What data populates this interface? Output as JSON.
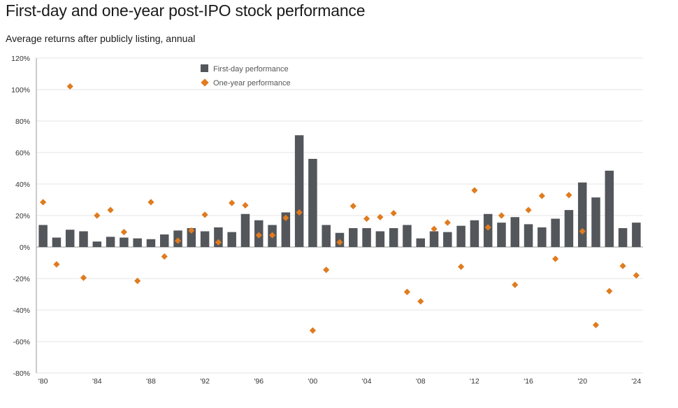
{
  "chart_data": {
    "type": "bar",
    "title": "First-day and one-year post-IPO stock performance",
    "subtitle": "Average returns after publicly listing, annual",
    "xlabel": "",
    "ylabel": "",
    "ylim": [
      -0.8,
      1.2
    ],
    "y_ticks": [
      1.2,
      1.0,
      0.8,
      0.6,
      0.4,
      0.2,
      0.0,
      -0.2,
      -0.4,
      -0.6,
      -0.8
    ],
    "y_tick_labels": [
      "120%",
      "100%",
      "80%",
      "60%",
      "40%",
      "20%",
      "0%",
      "-20%",
      "-40%",
      "-60%",
      "-80%"
    ],
    "x_tick_labels": [
      {
        "year": 1980,
        "label": "'80"
      },
      {
        "year": 1984,
        "label": "'84"
      },
      {
        "year": 1988,
        "label": "'88"
      },
      {
        "year": 1992,
        "label": "'92"
      },
      {
        "year": 1996,
        "label": "'96"
      },
      {
        "year": 2000,
        "label": "'00"
      },
      {
        "year": 2004,
        "label": "'04"
      },
      {
        "year": 2008,
        "label": "'08"
      },
      {
        "year": 2012,
        "label": "'12"
      },
      {
        "year": 2016,
        "label": "'16"
      },
      {
        "year": 2020,
        "label": "'20"
      },
      {
        "year": 2024,
        "label": "'24"
      }
    ],
    "grid": true,
    "legend_position": "top-left",
    "years": [
      1980,
      1981,
      1982,
      1983,
      1984,
      1985,
      1986,
      1987,
      1988,
      1989,
      1990,
      1991,
      1992,
      1993,
      1994,
      1995,
      1996,
      1997,
      1998,
      1999,
      2000,
      2001,
      2002,
      2003,
      2004,
      2005,
      2006,
      2007,
      2008,
      2009,
      2010,
      2011,
      2012,
      2013,
      2014,
      2015,
      2016,
      2017,
      2018,
      2019,
      2020,
      2021,
      2022,
      2023,
      2024
    ],
    "series": [
      {
        "name": "First-day performance",
        "kind": "bar",
        "color": "#53565a",
        "values": [
          0.14,
          0.06,
          0.11,
          0.1,
          0.035,
          0.065,
          0.06,
          0.055,
          0.05,
          0.08,
          0.105,
          0.12,
          0.1,
          0.125,
          0.095,
          0.21,
          0.17,
          0.14,
          0.22,
          0.71,
          0.56,
          0.14,
          0.09,
          0.12,
          0.12,
          0.1,
          0.12,
          0.14,
          0.055,
          0.1,
          0.095,
          0.135,
          0.17,
          0.21,
          0.155,
          0.19,
          0.145,
          0.125,
          0.18,
          0.235,
          0.41,
          0.315,
          0.485,
          0.12,
          0.155
        ]
      },
      {
        "name": "One-year performance",
        "kind": "scatter",
        "color": "#e07b1f",
        "values": [
          0.285,
          -0.11,
          1.02,
          -0.195,
          0.2,
          0.235,
          0.095,
          -0.215,
          0.285,
          -0.06,
          0.04,
          0.105,
          0.205,
          0.03,
          0.28,
          0.265,
          0.075,
          0.075,
          0.185,
          0.22,
          -0.53,
          -0.145,
          0.03,
          0.26,
          0.18,
          0.19,
          0.215,
          -0.285,
          -0.345,
          0.115,
          0.155,
          -0.125,
          0.36,
          0.125,
          0.2,
          -0.24,
          0.235,
          0.325,
          -0.075,
          0.33,
          0.1,
          -0.495,
          -0.28,
          -0.12,
          -0.18
        ]
      }
    ]
  }
}
